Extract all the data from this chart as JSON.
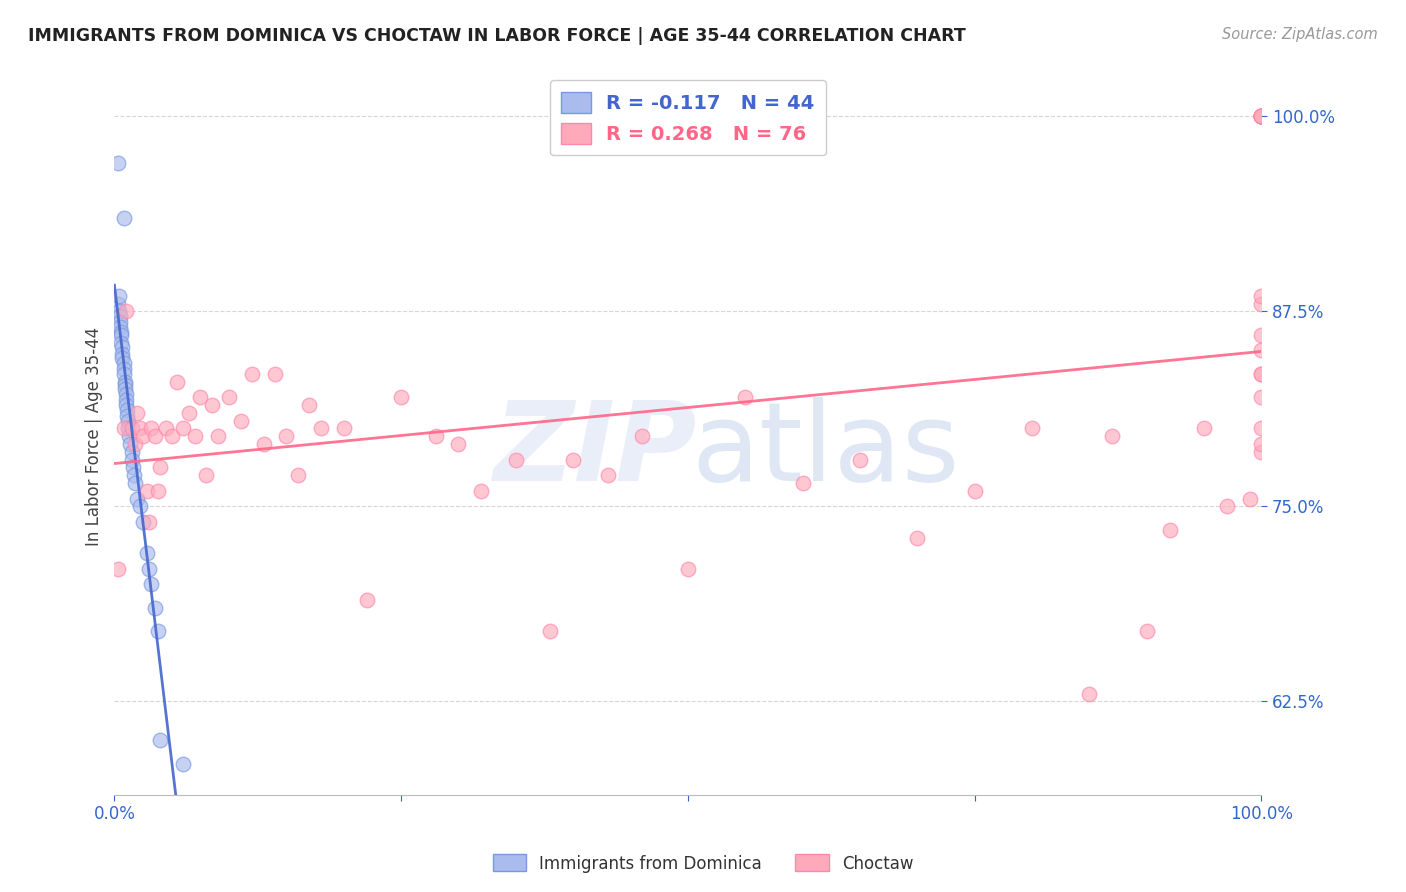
{
  "title": "IMMIGRANTS FROM DOMINICA VS CHOCTAW IN LABOR FORCE | AGE 35-44 CORRELATION CHART",
  "source_text": "Source: ZipAtlas.com",
  "ylabel": "In Labor Force | Age 35-44",
  "ytick_labels": [
    "100.0%",
    "87.5%",
    "75.0%",
    "62.5%"
  ],
  "ytick_values": [
    1.0,
    0.875,
    0.75,
    0.625
  ],
  "title_color": "#222222",
  "source_color": "#999999",
  "tick_label_color": "#3366cc",
  "grid_color": "#cccccc",
  "background_color": "#ffffff",
  "dominica_color": "#aabbee",
  "choctaw_color": "#ffaabb",
  "dominica_line_color": "#4466cc",
  "choctaw_line_color": "#ff6688",
  "dominica_marker_edge": "#7799dd",
  "choctaw_marker_edge": "#ff88aa",
  "xmin": 0.0,
  "xmax": 1.0,
  "ymin": 0.565,
  "ymax": 1.025,
  "dominica_x": [
    0.003,
    0.008,
    0.003,
    0.004,
    0.004,
    0.005,
    0.005,
    0.005,
    0.006,
    0.006,
    0.006,
    0.007,
    0.007,
    0.007,
    0.008,
    0.008,
    0.008,
    0.009,
    0.009,
    0.009,
    0.01,
    0.01,
    0.01,
    0.011,
    0.011,
    0.012,
    0.012,
    0.013,
    0.014,
    0.015,
    0.015,
    0.016,
    0.017,
    0.018,
    0.02,
    0.022,
    0.025,
    0.028,
    0.03,
    0.032,
    0.035,
    0.038,
    0.04,
    0.06
  ],
  "dominica_y": [
    0.97,
    0.935,
    0.88,
    0.885,
    0.875,
    0.872,
    0.868,
    0.865,
    0.862,
    0.86,
    0.855,
    0.852,
    0.848,
    0.845,
    0.842,
    0.838,
    0.835,
    0.83,
    0.828,
    0.825,
    0.822,
    0.818,
    0.815,
    0.812,
    0.808,
    0.805,
    0.8,
    0.795,
    0.79,
    0.785,
    0.78,
    0.775,
    0.77,
    0.765,
    0.755,
    0.75,
    0.74,
    0.72,
    0.71,
    0.7,
    0.685,
    0.67,
    0.6,
    0.585
  ],
  "choctaw_x": [
    0.003,
    0.008,
    0.01,
    0.015,
    0.018,
    0.02,
    0.022,
    0.025,
    0.028,
    0.03,
    0.032,
    0.035,
    0.038,
    0.04,
    0.045,
    0.05,
    0.055,
    0.06,
    0.065,
    0.07,
    0.075,
    0.08,
    0.085,
    0.09,
    0.1,
    0.11,
    0.12,
    0.13,
    0.14,
    0.15,
    0.16,
    0.17,
    0.18,
    0.2,
    0.22,
    0.25,
    0.28,
    0.3,
    0.32,
    0.35,
    0.38,
    0.4,
    0.43,
    0.46,
    0.5,
    0.55,
    0.6,
    0.65,
    0.7,
    0.75,
    0.8,
    0.85,
    0.87,
    0.9,
    0.92,
    0.95,
    0.97,
    0.99,
    1.0,
    1.0,
    1.0,
    1.0,
    1.0,
    1.0,
    1.0,
    1.0,
    1.0,
    1.0,
    1.0,
    1.0,
    1.0,
    1.0,
    1.0,
    1.0,
    1.0,
    1.0
  ],
  "choctaw_y": [
    0.71,
    0.8,
    0.875,
    0.8,
    0.79,
    0.81,
    0.8,
    0.795,
    0.76,
    0.74,
    0.8,
    0.795,
    0.76,
    0.775,
    0.8,
    0.795,
    0.83,
    0.8,
    0.81,
    0.795,
    0.82,
    0.77,
    0.815,
    0.795,
    0.82,
    0.805,
    0.835,
    0.79,
    0.835,
    0.795,
    0.77,
    0.815,
    0.8,
    0.8,
    0.69,
    0.82,
    0.795,
    0.79,
    0.76,
    0.78,
    0.67,
    0.78,
    0.77,
    0.795,
    0.71,
    0.82,
    0.765,
    0.78,
    0.73,
    0.76,
    0.8,
    0.63,
    0.795,
    0.67,
    0.735,
    0.8,
    0.75,
    0.755,
    0.785,
    0.835,
    0.8,
    0.82,
    0.85,
    0.88,
    0.86,
    0.79,
    0.835,
    0.885,
    1.0,
    1.0,
    1.0,
    1.0,
    1.0,
    1.0,
    1.0,
    1.0
  ]
}
